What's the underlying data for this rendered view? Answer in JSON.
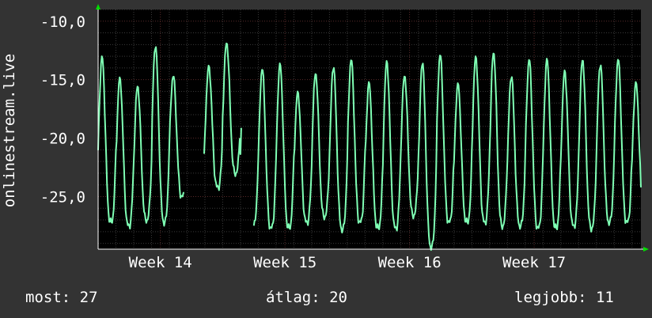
{
  "colors": {
    "background": "#333333",
    "plot_background": "#000000",
    "grid": "#5a2a2a",
    "grid_minor": "#3a3a3a",
    "line": "#7fffb4",
    "axis_arrow": "#00dd00"
  },
  "chart_data": {
    "type": "line",
    "title": "",
    "ylabel": "onlinestream.live",
    "xlabel": "",
    "ylim": [
      -29.5,
      -9.0
    ],
    "yticks": [
      -10.0,
      -15.0,
      -20.0,
      -25.0
    ],
    "ytick_labels": [
      "-10,0",
      "-15,0",
      "-20,0",
      "-25,0"
    ],
    "xlim": [
      0,
      30.5
    ],
    "xticks": [
      {
        "x": 3.5,
        "label": "Week 14"
      },
      {
        "x": 10.5,
        "label": "Week 15"
      },
      {
        "x": 17.5,
        "label": "Week 16"
      },
      {
        "x": 24.5,
        "label": "Week 17"
      }
    ],
    "grid": true,
    "series": [
      {
        "peaks": [
          -13.0,
          -14.8,
          -15.5,
          -12.0,
          -14.6,
          -14.6,
          -13.8,
          -11.8,
          -13.4,
          -14.0,
          -13.6,
          -16.0,
          -14.4,
          -13.8,
          -13.2,
          -15.2,
          -13.4,
          -14.6,
          -13.4,
          -12.8,
          -15.3,
          -13.0,
          -12.6,
          -14.6,
          -13.2,
          -13.2,
          -14.2,
          -13.2,
          -13.6,
          -13.2,
          -15.2
        ],
        "troughs": [
          -27.2,
          -27.5,
          -27.0,
          -27.2,
          -25.0,
          -24.6,
          -24.2,
          -23.0,
          -27.5,
          -27.7,
          -27.7,
          -27.2,
          -26.7,
          -27.8,
          -27.2,
          -27.7,
          -27.7,
          -26.6,
          -29.3,
          -27.2,
          -27.2,
          -27.2,
          -27.5,
          -27.5,
          -27.7,
          -27.7,
          -27.5,
          -27.7,
          -27.2,
          -27.2,
          -27.0
        ],
        "gaps": [
          [
            4.85,
            5.95
          ],
          [
            8.05,
            8.75
          ]
        ]
      }
    ]
  },
  "stats": {
    "current": "most: 27",
    "average": "átlag: 20",
    "best": "legjobb: 11"
  }
}
